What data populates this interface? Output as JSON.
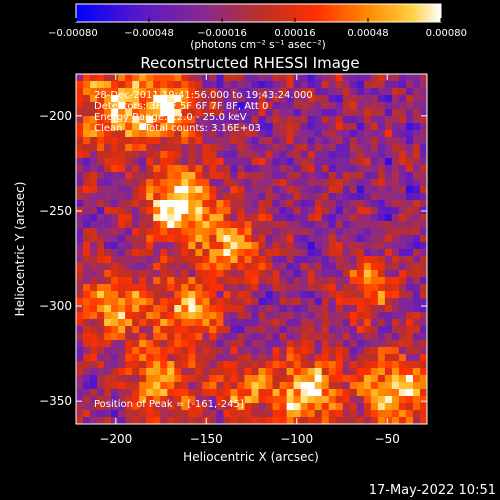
{
  "chart_data": {
    "type": "heatmap",
    "title": "Reconstructed RHESSI Image",
    "xlabel": "Heliocentric X (arcsec)",
    "ylabel": "Heliocentric Y (arcsec)",
    "xlim": [
      -222,
      -28
    ],
    "ylim": [
      -362,
      -178
    ],
    "x_ticks": [
      -200,
      -150,
      -100,
      -50
    ],
    "x_tick_labels": [
      "−200",
      "−150",
      "−100",
      "−50"
    ],
    "y_ticks": [
      -200,
      -250,
      -300,
      -350
    ],
    "y_tick_labels": [
      "−200",
      "−250",
      "−300",
      "−350"
    ],
    "colorbar": {
      "range": [
        -0.0008,
        0.0008
      ],
      "ticks": [
        -0.0008,
        -0.00048,
        -0.00016,
        0.00016,
        0.00048,
        0.0008
      ],
      "tick_labels": [
        "−0.00080",
        "−0.00048",
        "−0.00016",
        "0.00016",
        "0.00048",
        "0.00080"
      ],
      "units_label": "(photons cm⁻² s⁻¹ asec⁻²)",
      "colors": [
        "#0000ff",
        "#5a18c8",
        "#8a2a8a",
        "#c03020",
        "#ff3000",
        "#ff8a00",
        "#ffd040",
        "#ffffff"
      ]
    },
    "annotations": {
      "time_range": "28-Dec-2011 19:41:56.000 to 19:43:24.000",
      "detectors": "Detectors: 3F 4F 5F 6F 7F 8F, Att 0",
      "energy_range": "Energy Range: 12.0 - 25.0 keV",
      "method_counts": "Clean       Total counts: 3.16E+03",
      "peak_position": "Position of Peak = [-161,-245]"
    },
    "peak": {
      "x": -161,
      "y": -245
    },
    "bright_regions": [
      {
        "x": -165,
        "y": -247,
        "r": 14,
        "peak": 0.0008
      },
      {
        "x": -200,
        "y": -195,
        "r": 18,
        "peak": 0.00055
      },
      {
        "x": -170,
        "y": -195,
        "r": 12,
        "peak": 0.0005
      },
      {
        "x": -135,
        "y": -270,
        "r": 12,
        "peak": 0.0006
      },
      {
        "x": -160,
        "y": -300,
        "r": 12,
        "peak": 0.0005
      },
      {
        "x": -200,
        "y": -300,
        "r": 14,
        "peak": 0.0005
      },
      {
        "x": -175,
        "y": -340,
        "r": 14,
        "peak": 0.00045
      },
      {
        "x": -95,
        "y": -345,
        "r": 14,
        "peak": 0.00065
      },
      {
        "x": -45,
        "y": -345,
        "r": 14,
        "peak": 0.0007
      },
      {
        "x": -130,
        "y": -345,
        "r": 10,
        "peak": 0.0004
      },
      {
        "x": -60,
        "y": -290,
        "r": 10,
        "peak": 0.0004
      }
    ]
  },
  "footer": {
    "timestamp": "17-May-2022 10:51"
  }
}
